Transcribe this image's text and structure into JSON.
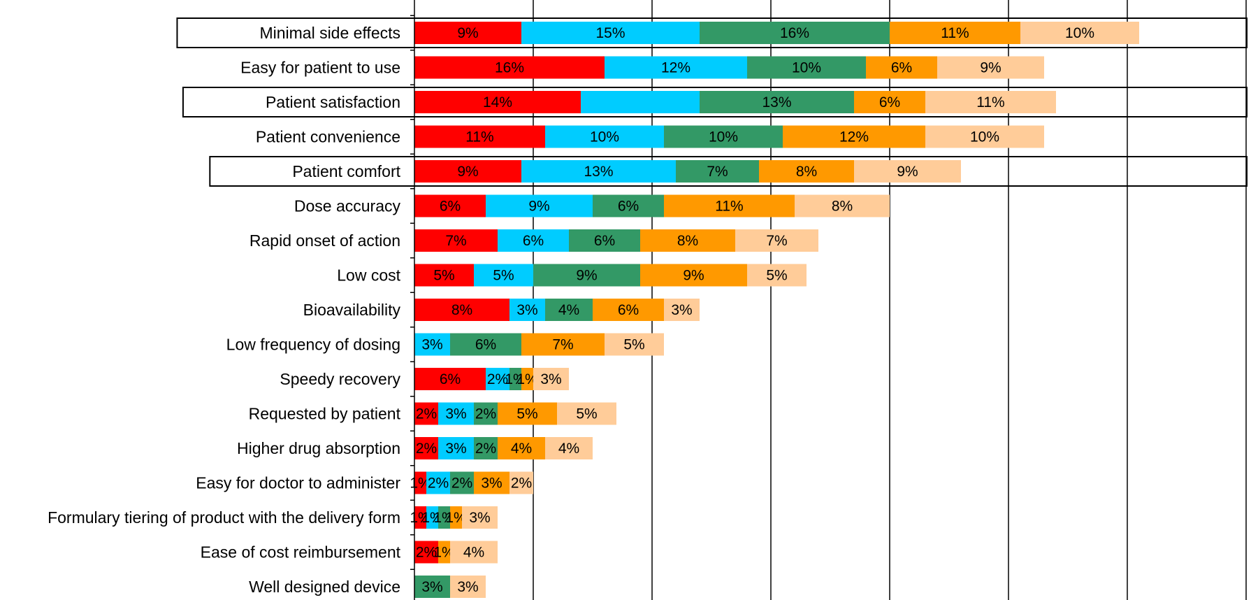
{
  "chart_data": {
    "type": "bar",
    "orientation": "horizontal",
    "stacked": true,
    "categories": [
      "Minimal side effects",
      "Easy for patient to use",
      "Patient satisfaction",
      "Patient convenience",
      "Patient comfort",
      "Dose accuracy",
      "Rapid onset of action",
      "Low cost",
      "Bioavailability",
      "Low frequency of dosing",
      "Speedy recovery",
      "Requested by patient",
      "Higher drug absorption",
      "Easy for doctor to administer",
      "Formulary tiering of product with the delivery form",
      "Ease of cost reimbursement",
      "Well designed device"
    ],
    "highlighted_categories": [
      "Minimal side effects",
      "Patient satisfaction",
      "Patient comfort"
    ],
    "series": [
      {
        "color": "#ff0000",
        "values": [
          9,
          16,
          14,
          11,
          9,
          6,
          7,
          5,
          8,
          0,
          6,
          2,
          2,
          1,
          1,
          2,
          0
        ],
        "labels": [
          "9%",
          "16%",
          "14%",
          "11%",
          "9%",
          "6%",
          "7%",
          "5%",
          "8%",
          "",
          "6%",
          "2%",
          "2%",
          "1%",
          "1%",
          "2%",
          ""
        ]
      },
      {
        "color": "#00ccff",
        "values": [
          15,
          12,
          10,
          10,
          13,
          9,
          6,
          5,
          3,
          3,
          2,
          3,
          3,
          2,
          1,
          0,
          0
        ],
        "labels": [
          "15%",
          "12%",
          "",
          "10%",
          "13%",
          "9%",
          "6%",
          "5%",
          "3%",
          "3%",
          "2%",
          "3%",
          "3%",
          "2%",
          "1%",
          "",
          ""
        ]
      },
      {
        "color": "#339966",
        "values": [
          16,
          10,
          13,
          10,
          7,
          6,
          6,
          9,
          4,
          6,
          1,
          2,
          2,
          2,
          1,
          0,
          3
        ],
        "labels": [
          "16%",
          "10%",
          "13%",
          "10%",
          "7%",
          "6%",
          "6%",
          "9%",
          "4%",
          "6%",
          "1%",
          "2%",
          "2%",
          "2%",
          "1%",
          "",
          "3%"
        ]
      },
      {
        "color": "#ff9900",
        "values": [
          11,
          6,
          6,
          12,
          8,
          11,
          8,
          9,
          6,
          7,
          1,
          5,
          4,
          3,
          1,
          1,
          0
        ],
        "labels": [
          "11%",
          "6%",
          "6%",
          "12%",
          "8%",
          "11%",
          "8%",
          "9%",
          "6%",
          "7%",
          "1%",
          "5%",
          "4%",
          "3%",
          "1%",
          "1%",
          ""
        ]
      },
      {
        "color": "#ffcc99",
        "values": [
          10,
          9,
          11,
          10,
          9,
          8,
          7,
          5,
          3,
          5,
          3,
          5,
          4,
          2,
          3,
          4,
          3
        ],
        "labels": [
          "10%",
          "9%",
          "11%",
          "10%",
          "9%",
          "8%",
          "7%",
          "5%",
          "3%",
          "5%",
          "3%",
          "5%",
          "4%",
          "2%",
          "3%",
          "4%",
          "3%"
        ]
      }
    ],
    "xlim": [
      0,
      70
    ],
    "x_gridline_step": 10,
    "xgrid": true,
    "ygrid": false,
    "legend": "none"
  }
}
